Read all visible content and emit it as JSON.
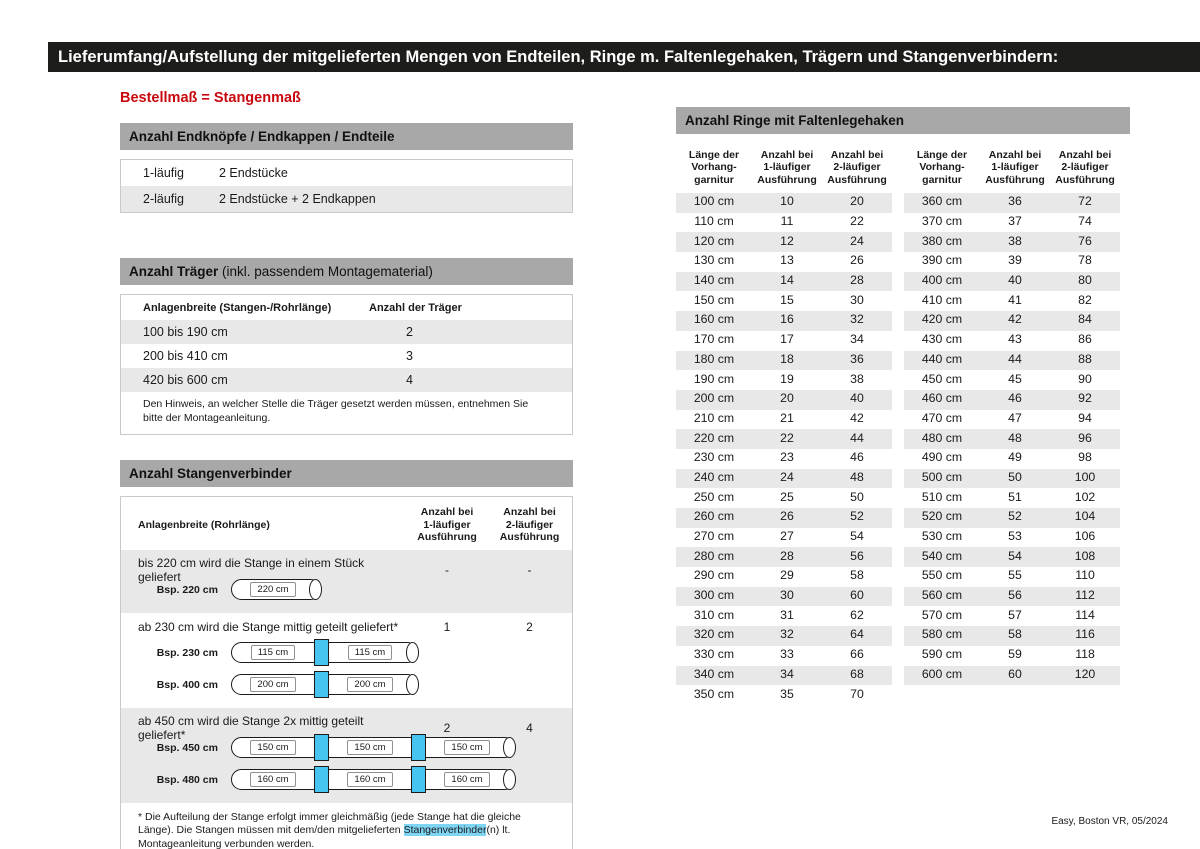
{
  "page": {
    "title": "Lieferumfang/Aufstellung der mitgelieferten Mengen von Endteilen, Ringe m. Faltenlegehaken, Trägern und Stangenverbindern:",
    "subtitle": "Bestellmaß = Stangenmaß",
    "footer": "Easy, Boston VR, 05/2024"
  },
  "colors": {
    "topbar_dark": "#1d1d1b",
    "header_gray": "#a8a8a8",
    "row_gray": "#e8e8e8",
    "accent_red": "#c9080e",
    "connector_blue": "#45c5f0",
    "highlight_blue": "#7ed4f3"
  },
  "endteile": {
    "header": "Anzahl Endknöpfe / Endkappen / Endteile",
    "rows": [
      {
        "label": "1-läufig",
        "value": "2 Endstücke"
      },
      {
        "label": "2-läufig",
        "value": "2 Endstücke + 2 Endkappen"
      }
    ]
  },
  "traeger": {
    "header_bold": "Anzahl Träger",
    "header_rest": " (inkl. passendem Montagematerial)",
    "col1": "Anlagenbreite (Stangen-/Rohrlänge)",
    "col2": "Anzahl der Träger",
    "rows": [
      {
        "range": "100 bis 190 cm",
        "count": "2"
      },
      {
        "range": "200 bis 410 cm",
        "count": "3"
      },
      {
        "range": "420 bis 600 cm",
        "count": "4"
      }
    ],
    "note": "Den Hinweis, an welcher Stelle die Träger gesetzt werden müssen, entnehmen Sie bitte der Montageanleitung."
  },
  "verbinder": {
    "header": "Anzahl Stangenverbinder",
    "col_label": "Anlagenbreite (Rohrlänge)",
    "col1": "Anzahl bei\n1-läufiger\nAusführung",
    "col2": "Anzahl bei\n2-läufiger\nAusführung",
    "blocks": [
      {
        "text": "bis 220 cm wird die Stange in einem Stück geliefert",
        "count1": "-",
        "count2": "-",
        "examples": [
          {
            "label": "Bsp. 220 cm",
            "segments": [
              "220 cm"
            ]
          }
        ]
      },
      {
        "text": "ab 230 cm wird die Stange mittig geteilt geliefert*",
        "count1": "1",
        "count2": "2",
        "examples": [
          {
            "label": "Bsp. 230 cm",
            "segments": [
              "115 cm",
              "115 cm"
            ]
          },
          {
            "label": "Bsp. 400 cm",
            "segments": [
              "200 cm",
              "200 cm"
            ]
          }
        ]
      },
      {
        "text": "ab 450 cm wird die Stange 2x mittig geteilt geliefert*",
        "count1": "2",
        "count2": "4",
        "examples": [
          {
            "label": "Bsp. 450 cm",
            "segments": [
              "150 cm",
              "150 cm",
              "150 cm"
            ]
          },
          {
            "label": "Bsp. 480 cm",
            "segments": [
              "160 cm",
              "160 cm",
              "160 cm"
            ]
          }
        ]
      }
    ],
    "footnote_pre": "* Die Aufteilung der Stange erfolgt immer gleichmäßig (jede Stange hat die gleiche Länge). Die Stangen müssen mit dem/den mitgelieferten ",
    "footnote_highlight": "Stangenverbinder",
    "footnote_post": "(n) lt. Montageanleitung verbunden werden."
  },
  "ringe": {
    "header": "Anzahl Ringe mit Faltenlegehaken",
    "col_length": "Länge der\nVorhang-\ngarnitur",
    "col1": "Anzahl bei\n1-läufiger\nAusführung",
    "col2": "Anzahl bei\n2-läufiger\nAusführung",
    "table1": [
      [
        "100 cm",
        "10",
        "20"
      ],
      [
        "110 cm",
        "11",
        "22"
      ],
      [
        "120 cm",
        "12",
        "24"
      ],
      [
        "130 cm",
        "13",
        "26"
      ],
      [
        "140 cm",
        "14",
        "28"
      ],
      [
        "150 cm",
        "15",
        "30"
      ],
      [
        "160 cm",
        "16",
        "32"
      ],
      [
        "170 cm",
        "17",
        "34"
      ],
      [
        "180 cm",
        "18",
        "36"
      ],
      [
        "190 cm",
        "19",
        "38"
      ],
      [
        "200 cm",
        "20",
        "40"
      ],
      [
        "210 cm",
        "21",
        "42"
      ],
      [
        "220 cm",
        "22",
        "44"
      ],
      [
        "230 cm",
        "23",
        "46"
      ],
      [
        "240 cm",
        "24",
        "48"
      ],
      [
        "250 cm",
        "25",
        "50"
      ],
      [
        "260 cm",
        "26",
        "52"
      ],
      [
        "270 cm",
        "27",
        "54"
      ],
      [
        "280 cm",
        "28",
        "56"
      ],
      [
        "290 cm",
        "29",
        "58"
      ],
      [
        "300 cm",
        "30",
        "60"
      ],
      [
        "310 cm",
        "31",
        "62"
      ],
      [
        "320 cm",
        "32",
        "64"
      ],
      [
        "330 cm",
        "33",
        "66"
      ],
      [
        "340 cm",
        "34",
        "68"
      ],
      [
        "350 cm",
        "35",
        "70"
      ]
    ],
    "table2": [
      [
        "360 cm",
        "36",
        "72"
      ],
      [
        "370 cm",
        "37",
        "74"
      ],
      [
        "380 cm",
        "38",
        "76"
      ],
      [
        "390 cm",
        "39",
        "78"
      ],
      [
        "400 cm",
        "40",
        "80"
      ],
      [
        "410 cm",
        "41",
        "82"
      ],
      [
        "420 cm",
        "42",
        "84"
      ],
      [
        "430 cm",
        "43",
        "86"
      ],
      [
        "440 cm",
        "44",
        "88"
      ],
      [
        "450 cm",
        "45",
        "90"
      ],
      [
        "460 cm",
        "46",
        "92"
      ],
      [
        "470 cm",
        "47",
        "94"
      ],
      [
        "480 cm",
        "48",
        "96"
      ],
      [
        "490 cm",
        "49",
        "98"
      ],
      [
        "500 cm",
        "50",
        "100"
      ],
      [
        "510 cm",
        "51",
        "102"
      ],
      [
        "520 cm",
        "52",
        "104"
      ],
      [
        "530 cm",
        "53",
        "106"
      ],
      [
        "540 cm",
        "54",
        "108"
      ],
      [
        "550 cm",
        "55",
        "110"
      ],
      [
        "560 cm",
        "56",
        "112"
      ],
      [
        "570 cm",
        "57",
        "114"
      ],
      [
        "580 cm",
        "58",
        "116"
      ],
      [
        "590 cm",
        "59",
        "118"
      ],
      [
        "600 cm",
        "60",
        "120"
      ]
    ]
  }
}
